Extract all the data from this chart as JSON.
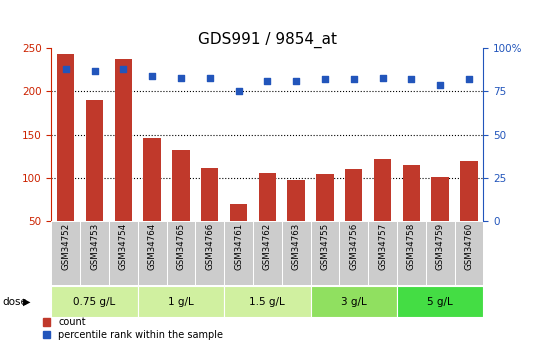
{
  "title": "GDS991 / 9854_at",
  "samples": [
    "GSM34752",
    "GSM34753",
    "GSM34754",
    "GSM34764",
    "GSM34765",
    "GSM34766",
    "GSM34761",
    "GSM34762",
    "GSM34763",
    "GSM34755",
    "GSM34756",
    "GSM34757",
    "GSM34758",
    "GSM34759",
    "GSM34760"
  ],
  "counts": [
    243,
    190,
    238,
    146,
    132,
    111,
    70,
    106,
    97,
    104,
    110,
    122,
    115,
    101,
    119
  ],
  "percentiles": [
    88,
    87,
    88,
    84,
    83,
    83,
    75,
    81,
    81,
    82,
    82,
    83,
    82,
    79,
    82
  ],
  "bar_color": "#c0392b",
  "dot_color": "#2255bb",
  "bar_bottom": 50,
  "ylim_left": [
    50,
    250
  ],
  "ylim_right": [
    0,
    100
  ],
  "yticks_left": [
    50,
    100,
    150,
    200,
    250
  ],
  "yticks_right": [
    0,
    25,
    50,
    75,
    100
  ],
  "doses": [
    {
      "label": "0.75 g/L",
      "samples": [
        "GSM34752",
        "GSM34753",
        "GSM34754"
      ],
      "color": "#d0f0a0"
    },
    {
      "label": "1 g/L",
      "samples": [
        "GSM34764",
        "GSM34765",
        "GSM34766"
      ],
      "color": "#d0f0a0"
    },
    {
      "label": "1.5 g/L",
      "samples": [
        "GSM34761",
        "GSM34762",
        "GSM34763"
      ],
      "color": "#d0f0a0"
    },
    {
      "label": "3 g/L",
      "samples": [
        "GSM34755",
        "GSM34756",
        "GSM34757"
      ],
      "color": "#90e060"
    },
    {
      "label": "5 g/L",
      "samples": [
        "GSM34758",
        "GSM34759",
        "GSM34760"
      ],
      "color": "#44dd44"
    }
  ],
  "dose_label": "dose",
  "legend_count_label": "count",
  "legend_pct_label": "percentile rank within the sample",
  "title_fontsize": 11,
  "axis_label_color_left": "#cc2200",
  "axis_label_color_right": "#2255bb",
  "grid_color": "#000000",
  "tick_area_bg": "#cccccc",
  "fig_width": 5.4,
  "fig_height": 3.45,
  "fig_dpi": 100
}
